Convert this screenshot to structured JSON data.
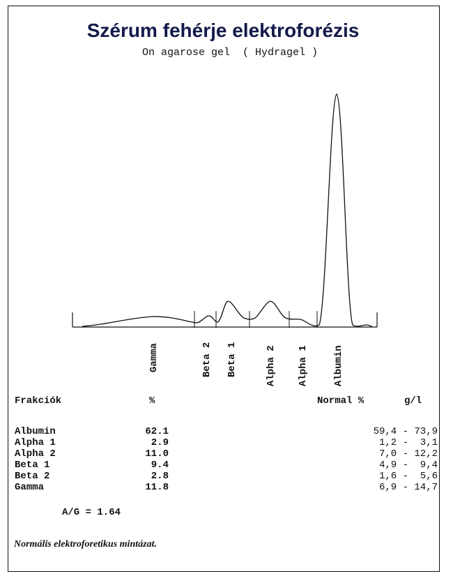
{
  "report": {
    "title": "Szérum fehérje elektroforézis",
    "subtitle": "On agarose gel  ( Hydragel )"
  },
  "fractions": [
    {
      "name": "Gamma"
    },
    {
      "name": "Beta 2"
    },
    {
      "name": "Beta 1"
    },
    {
      "name": "Alpha 2"
    },
    {
      "name": "Alpha 1"
    },
    {
      "name": "Albumin"
    }
  ],
  "table": {
    "headers": {
      "fraction": "Frakciók",
      "percent": "%",
      "normal_percent": "Normal %",
      "gl": "g/l"
    },
    "rows": [
      {
        "name": "Albumin",
        "percent": "62.1",
        "normal": "59,4 - 73,9"
      },
      {
        "name": "Alpha 1",
        "percent": "2.9",
        "normal": "1,2 -  3,1"
      },
      {
        "name": "Alpha 2",
        "percent": "11.0",
        "normal": "7,0 - 12,2"
      },
      {
        "name": "Beta 1",
        "percent": "9.4",
        "normal": "4,9 -  9,4"
      },
      {
        "name": "Beta 2",
        "percent": "2.8",
        "normal": "1,6 -  5,6"
      },
      {
        "name": "Gamma",
        "percent": "11.8",
        "normal": "6,9 - 14,7"
      }
    ]
  },
  "ag_ratio": "A/G = 1.64",
  "comment": "Normális elektroforetikus mintázat.",
  "colors": {
    "title": "#131a4a",
    "line": "#111111"
  }
}
